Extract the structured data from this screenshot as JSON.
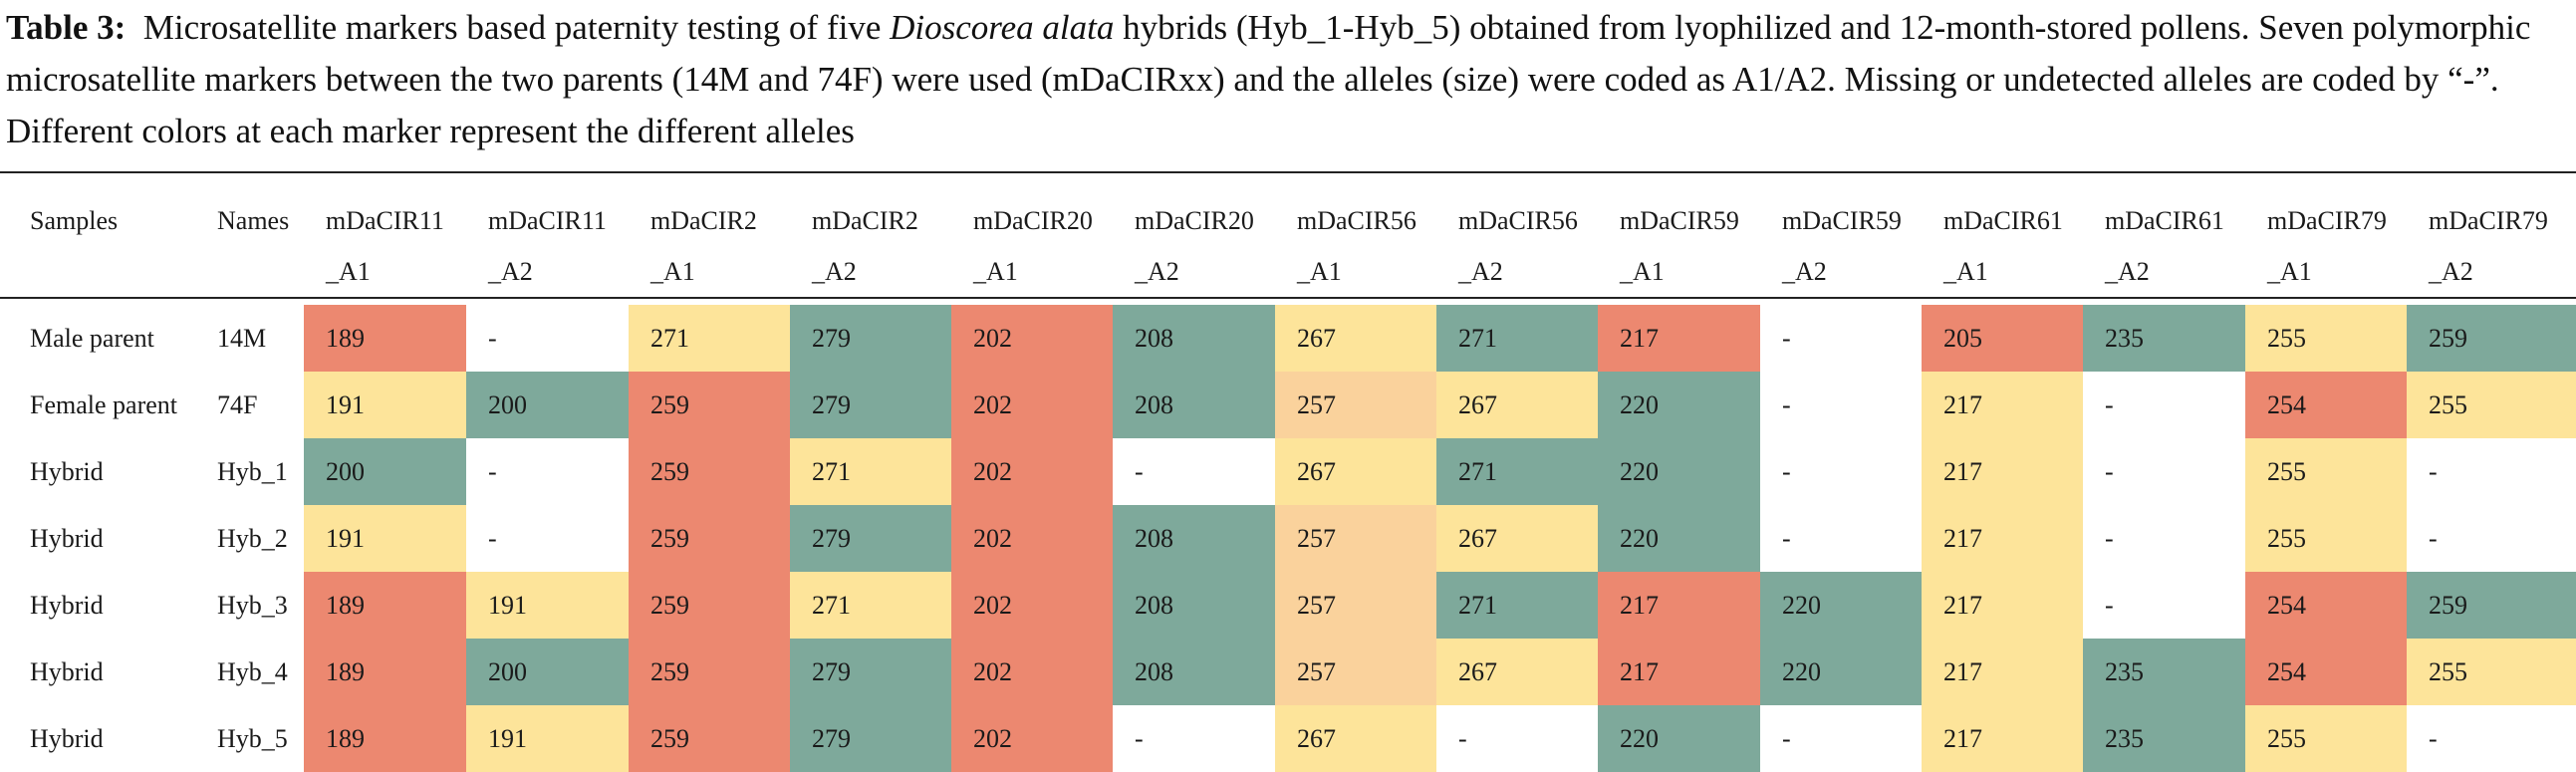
{
  "caption": {
    "label": "Table 3:",
    "text_before": "Microsatellite markers based paternity testing of five ",
    "species": "Dioscorea alata",
    "text_after": " hybrids (Hyb_1-Hyb_5) obtained from lyophilized and 12-month-stored pollens. Seven polymorphic microsatellite markers between the two parents (14M and 74F) were used (mDaCIRxx) and the alleles (size) were coded as A1/A2. Missing or undetected alleles are coded by “-”. Different colors at each marker represent the different alleles"
  },
  "colors": {
    "red": "#ec8870",
    "yellow": "#fde49a",
    "green": "#7ea99b",
    "orange": "#fad29c",
    "none": "#ffffff"
  },
  "table": {
    "header_line1": [
      "Samples",
      "Names",
      "mDaCIR11",
      "mDaCIR11",
      "mDaCIR2",
      "mDaCIR2",
      "mDaCIR20",
      "mDaCIR20",
      "mDaCIR56",
      "mDaCIR56",
      "mDaCIR59",
      "mDaCIR59",
      "mDaCIR61",
      "mDaCIR61",
      "mDaCIR79",
      "mDaCIR79"
    ],
    "header_line2": [
      "",
      "",
      "_A1",
      "_A2",
      "_A1",
      "_A2",
      "_A1",
      "_A2",
      "_A1",
      "_A2",
      "_A1",
      "_A2",
      "_A1",
      "_A2",
      "_A1",
      "_A2"
    ],
    "rows": [
      {
        "sample": "Male parent",
        "name": "14M",
        "values": [
          "189",
          "-",
          "271",
          "279",
          "202",
          "208",
          "267",
          "271",
          "217",
          "-",
          "205",
          "235",
          "255",
          "259"
        ],
        "colors": [
          "red",
          "none",
          "yellow",
          "green",
          "red",
          "green",
          "yellow",
          "green",
          "red",
          "none",
          "red",
          "green",
          "yellow",
          "green"
        ]
      },
      {
        "sample": "Female parent",
        "name": "74F",
        "values": [
          "191",
          "200",
          "259",
          "279",
          "202",
          "208",
          "257",
          "267",
          "220",
          "-",
          "217",
          "-",
          "254",
          "255"
        ],
        "colors": [
          "yellow",
          "green",
          "red",
          "green",
          "red",
          "green",
          "orange",
          "yellow",
          "green",
          "none",
          "yellow",
          "none",
          "red",
          "yellow"
        ]
      },
      {
        "sample": "Hybrid",
        "name": "Hyb_1",
        "values": [
          "200",
          "-",
          "259",
          "271",
          "202",
          "-",
          "267",
          "271",
          "220",
          "-",
          "217",
          "-",
          "255",
          "-"
        ],
        "colors": [
          "green",
          "none",
          "red",
          "yellow",
          "red",
          "none",
          "yellow",
          "green",
          "green",
          "none",
          "yellow",
          "none",
          "yellow",
          "none"
        ]
      },
      {
        "sample": "Hybrid",
        "name": "Hyb_2",
        "values": [
          "191",
          "-",
          "259",
          "279",
          "202",
          "208",
          "257",
          "267",
          "220",
          "-",
          "217",
          "-",
          "255",
          "-"
        ],
        "colors": [
          "yellow",
          "none",
          "red",
          "green",
          "red",
          "green",
          "orange",
          "yellow",
          "green",
          "none",
          "yellow",
          "none",
          "yellow",
          "none"
        ]
      },
      {
        "sample": "Hybrid",
        "name": "Hyb_3",
        "values": [
          "189",
          "191",
          "259",
          "271",
          "202",
          "208",
          "257",
          "271",
          "217",
          "220",
          "217",
          "-",
          "254",
          "259"
        ],
        "colors": [
          "red",
          "yellow",
          "red",
          "yellow",
          "red",
          "green",
          "orange",
          "green",
          "red",
          "green",
          "yellow",
          "none",
          "red",
          "green"
        ]
      },
      {
        "sample": "Hybrid",
        "name": "Hyb_4",
        "values": [
          "189",
          "200",
          "259",
          "279",
          "202",
          "208",
          "257",
          "267",
          "217",
          "220",
          "217",
          "235",
          "254",
          "255"
        ],
        "colors": [
          "red",
          "green",
          "red",
          "green",
          "red",
          "green",
          "orange",
          "yellow",
          "red",
          "green",
          "yellow",
          "green",
          "red",
          "yellow"
        ]
      },
      {
        "sample": "Hybrid",
        "name": "Hyb_5",
        "values": [
          "189",
          "191",
          "259",
          "279",
          "202",
          "-",
          "267",
          "-",
          "220",
          "-",
          "217",
          "235",
          "255",
          "-"
        ],
        "colors": [
          "red",
          "yellow",
          "red",
          "green",
          "red",
          "none",
          "yellow",
          "none",
          "green",
          "none",
          "yellow",
          "green",
          "yellow",
          "none"
        ]
      }
    ]
  }
}
